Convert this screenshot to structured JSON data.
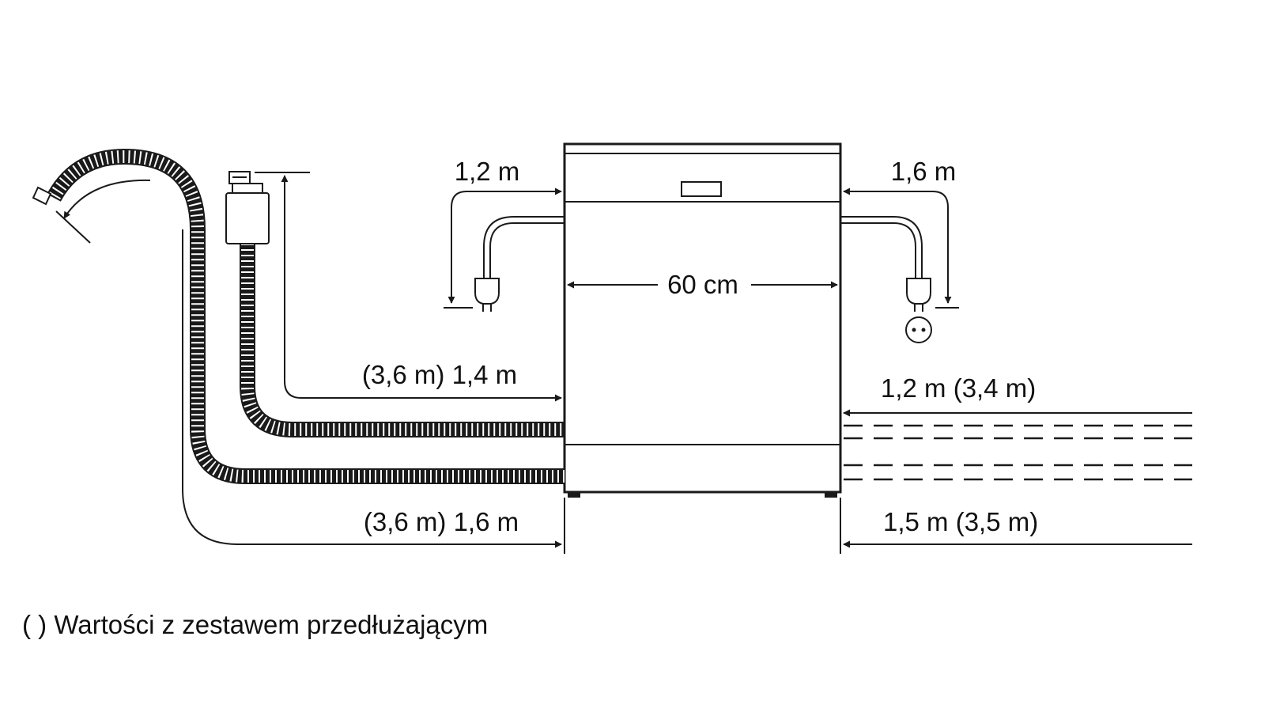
{
  "labels": {
    "plug_left": "1,2 m",
    "plug_right": "1,6 m",
    "width": "60 cm",
    "inlet_hose": "(3,6 m) 1,4 m",
    "drain_hose": "(3,6 m) 1,6 m",
    "right_upper": "1,2 m (3,4 m)",
    "right_lower": "1,5 m (3,5 m)"
  },
  "footnote": "( ) Wartości z zestawem przedłużającym",
  "colors": {
    "line": "#1a1a1a",
    "background": "#ffffff"
  }
}
